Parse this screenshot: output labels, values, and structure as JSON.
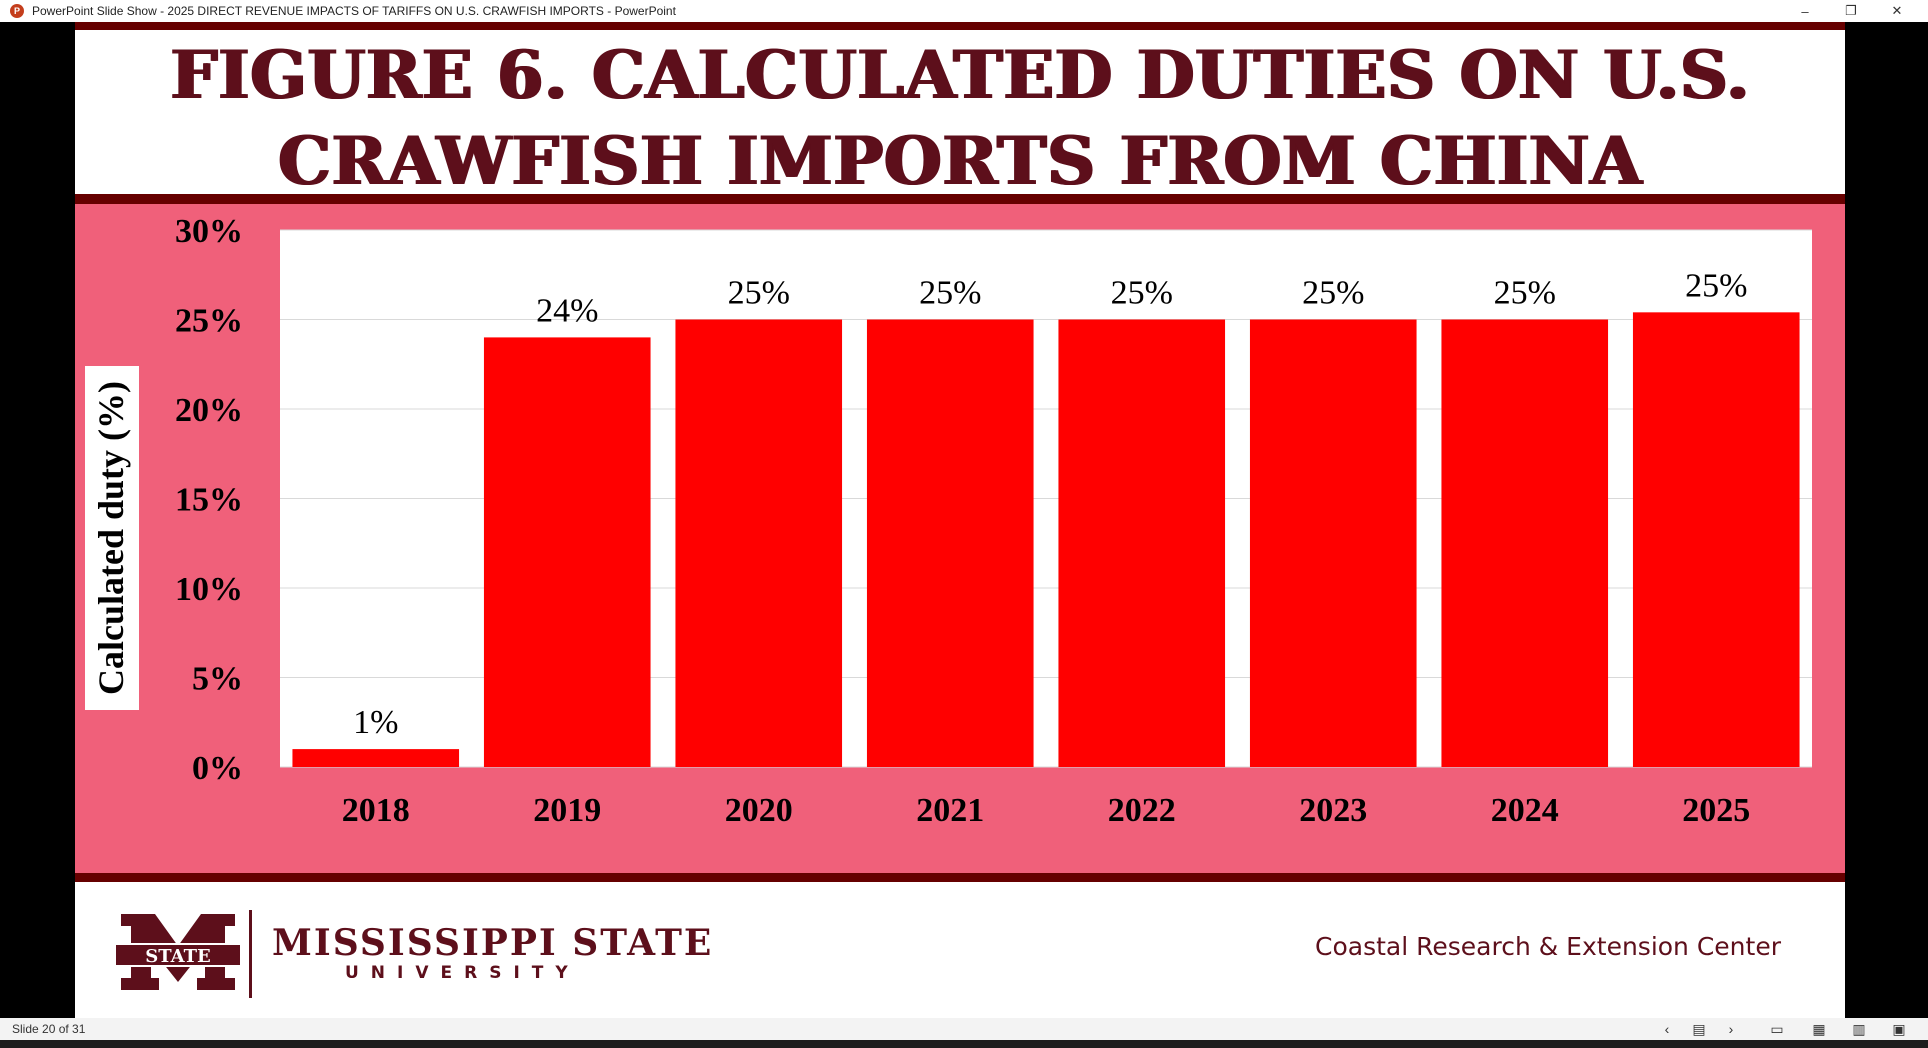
{
  "window": {
    "title": "PowerPoint Slide Show  -  2025 DIRECT REVENUE IMPACTS OF TARIFFS ON U.S. CRAWFISH IMPORTS - PowerPoint",
    "minimize": "–",
    "restore": "❐",
    "close": "✕"
  },
  "slide": {
    "title_line1": "FIGURE 6. CALCULATED DUTIES ON U.S.",
    "title_line2": "CRAWFISH IMPORTS FROM CHINA"
  },
  "chart_data": {
    "type": "bar",
    "categories": [
      "2018",
      "2019",
      "2020",
      "2021",
      "2022",
      "2023",
      "2024",
      "2025"
    ],
    "values": [
      1,
      24,
      25,
      25,
      25,
      25,
      25,
      25.4
    ],
    "data_labels": [
      "1%",
      "24%",
      "25%",
      "25%",
      "25%",
      "25%",
      "25%",
      "25%"
    ],
    "ylabel": "Calculated duty (%)",
    "xlabel": "",
    "title": "",
    "ylim": [
      0,
      30
    ],
    "yticks": [
      "0%",
      "5%",
      "10%",
      "15%",
      "20%",
      "25%",
      "30%"
    ],
    "grid": true,
    "bar_color": "#ff0000",
    "panel_color": "#f0607a"
  },
  "footer": {
    "logo_badge": "STATE",
    "university_name": "MISSISSIPPI STATE",
    "university_sub": "UNIVERSITY",
    "center_name": "Coastal Research & Extension Center"
  },
  "statusbar": {
    "slide_counter": "Slide 20 of 31"
  },
  "colors": {
    "maroon": "#5d0f1b",
    "accent_red": "#ff0000"
  }
}
